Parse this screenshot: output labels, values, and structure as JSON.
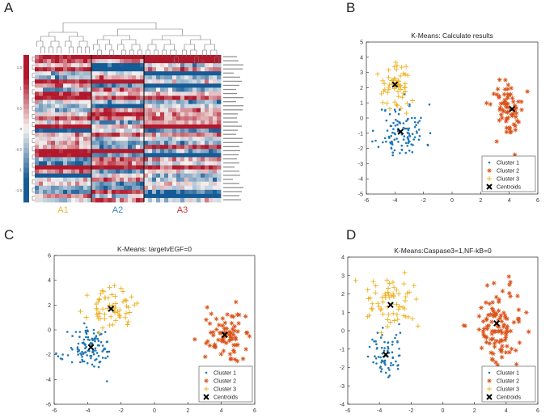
{
  "panel_labels": {
    "a": "A",
    "b": "B",
    "c": "C",
    "d": "D"
  },
  "heatmap": {
    "group_labels": [
      "A1",
      "A2",
      "A3"
    ],
    "group_colors": [
      "#e8b93a",
      "#3d86c3",
      "#c8323a"
    ],
    "colorbar_ticks": [
      "1.5",
      "1",
      "0.5",
      "0",
      "-0.5",
      "-1",
      "-1.5"
    ],
    "colormap": {
      "low": "#155c97",
      "mid": "#f5f2f0",
      "high": "#b2182b"
    }
  },
  "colors": {
    "cluster1": "#1f77b4",
    "cluster2": "#d95319",
    "cluster3": "#edb120",
    "centroid": "#000000"
  },
  "legend_labels": [
    "Cluster 1",
    "Cluster 2",
    "Cluster 3",
    "Centroids"
  ],
  "chart_data": [
    {
      "id": "B",
      "type": "scatter",
      "title": "K-Means: Calculate results",
      "xlim": [
        -6,
        6
      ],
      "ylim": [
        -5,
        5
      ],
      "xticks": [
        -6,
        -4,
        -2,
        0,
        2,
        4,
        6
      ],
      "yticks": [
        -5,
        -4,
        -3,
        -2,
        -1,
        0,
        1,
        2,
        3,
        4,
        5
      ],
      "series": [
        {
          "name": "Cluster 1",
          "center": [
            -3.5,
            -0.9
          ],
          "spread": [
            1.1,
            1.2
          ],
          "count": 110,
          "marker": "dot",
          "seed": 11
        },
        {
          "name": "Cluster 2",
          "center": [
            4.0,
            0.6
          ],
          "spread": [
            0.8,
            1.3
          ],
          "count": 70,
          "marker": "star",
          "seed": 12
        },
        {
          "name": "Cluster 3",
          "center": [
            -4.0,
            2.1
          ],
          "spread": [
            0.7,
            1.0
          ],
          "count": 60,
          "marker": "plus",
          "seed": 13
        }
      ],
      "centroids": [
        [
          -3.6,
          -0.9
        ],
        [
          4.2,
          0.6
        ],
        [
          -4.0,
          2.2
        ]
      ]
    },
    {
      "id": "C",
      "type": "scatter",
      "title": "K-Means: targetvEGF=0",
      "xlim": [
        -6,
        6
      ],
      "ylim": [
        -6,
        6
      ],
      "xticks": [
        -6,
        -4,
        -2,
        0,
        2,
        4,
        6
      ],
      "yticks": [
        -6,
        -4,
        -2,
        0,
        2,
        4,
        6
      ],
      "series": [
        {
          "name": "Cluster 1",
          "center": [
            -3.8,
            -1.6
          ],
          "spread": [
            0.9,
            1.1
          ],
          "count": 120,
          "marker": "dot",
          "seed": 21
        },
        {
          "name": "Cluster 2",
          "center": [
            4.2,
            -0.4
          ],
          "spread": [
            0.8,
            1.4
          ],
          "count": 80,
          "marker": "star",
          "seed": 22
        },
        {
          "name": "Cluster 3",
          "center": [
            -2.6,
            1.7
          ],
          "spread": [
            0.9,
            1.0
          ],
          "count": 65,
          "marker": "plus",
          "seed": 23
        }
      ],
      "centroids": [
        [
          -3.8,
          -1.4
        ],
        [
          4.2,
          -0.4
        ],
        [
          -2.6,
          1.7
        ]
      ]
    },
    {
      "id": "D",
      "type": "scatter",
      "title": "K-Means:Caspase3=1,NF-kB=0",
      "xlim": [
        -6,
        6
      ],
      "ylim": [
        -4,
        4
      ],
      "xticks": [
        -6,
        -4,
        -2,
        0,
        2,
        4,
        6
      ],
      "yticks": [
        -4,
        -3,
        -2,
        -1,
        0,
        1,
        2,
        3,
        4
      ],
      "series": [
        {
          "name": "Cluster 1",
          "center": [
            -3.6,
            -1.3
          ],
          "spread": [
            0.7,
            0.9
          ],
          "count": 70,
          "marker": "dot",
          "seed": 31
        },
        {
          "name": "Cluster 2",
          "center": [
            3.4,
            0.3
          ],
          "spread": [
            1.0,
            1.5
          ],
          "count": 110,
          "marker": "star",
          "seed": 32
        },
        {
          "name": "Cluster 3",
          "center": [
            -3.3,
            1.4
          ],
          "spread": [
            1.0,
            0.9
          ],
          "count": 65,
          "marker": "plus",
          "seed": 33
        }
      ],
      "centroids": [
        [
          -3.6,
          -1.3
        ],
        [
          3.4,
          0.4
        ],
        [
          -3.3,
          1.4
        ]
      ]
    }
  ]
}
